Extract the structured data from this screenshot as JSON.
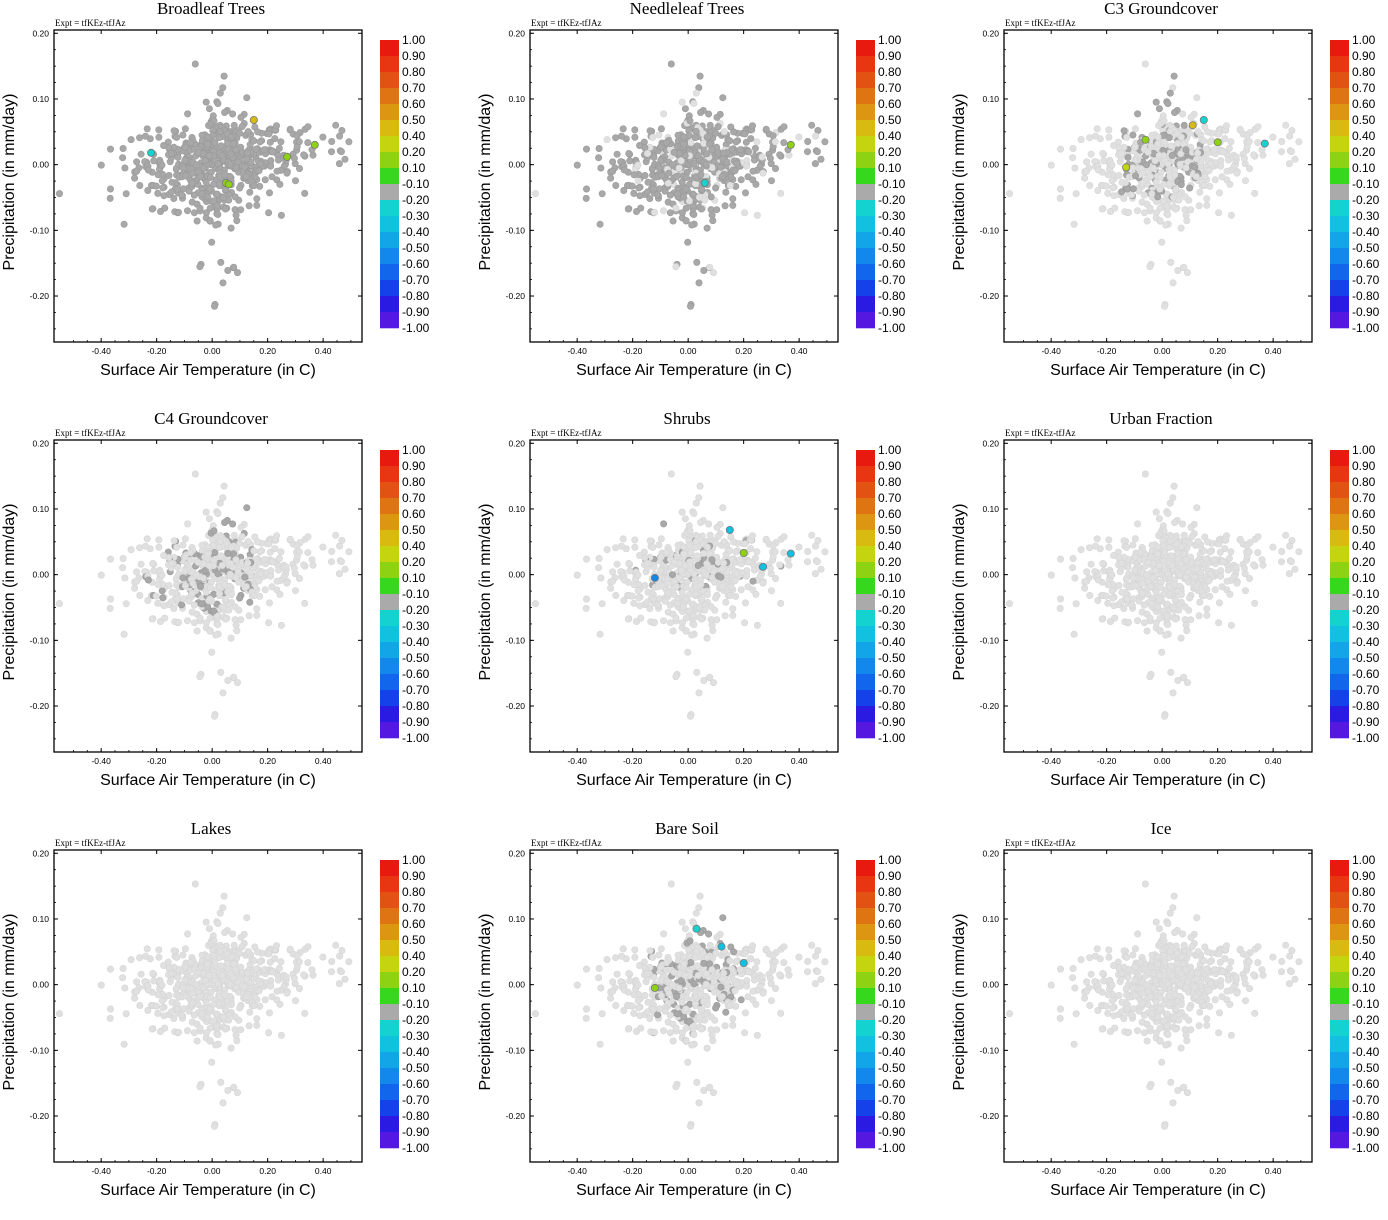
{
  "chart_data": {
    "type": "scatter",
    "xlabel": "Surface Air Temperature (in C)",
    "ylabel": "Precipitation (in mm/day)",
    "xlim": [
      -0.57,
      0.54
    ],
    "ylim": [
      -0.27,
      0.205
    ],
    "x_ticks": [
      "-0.40",
      "-0.20",
      "0.00",
      "0.20",
      "0.40"
    ],
    "y_ticks": [
      "0.20",
      "0.10",
      "0.00",
      "-0.10",
      "-0.20"
    ],
    "expt_label": "Expt = tfKEz-tfJAz",
    "colorbar": {
      "labels": [
        "1.00",
        "0.90",
        "0.80",
        "0.70",
        "0.60",
        "0.50",
        "0.40",
        "0.20",
        "0.10",
        "-0.10",
        "-0.20",
        "-0.30",
        "-0.40",
        "-0.50",
        "-0.60",
        "-0.70",
        "-0.80",
        "-0.90",
        "-1.00"
      ],
      "colors": [
        "#e8190f",
        "#e83512",
        "#e25212",
        "#de7512",
        "#dd9612",
        "#d8ba10",
        "#c4d40e",
        "#8ed214",
        "#36d81e",
        "#aaaaaa",
        "#14d2cf",
        "#12c0e0",
        "#12a6e8",
        "#1287ec",
        "#1266ec",
        "#1442e8",
        "#2a1ae2",
        "#5418e0",
        "#8012e4"
      ]
    },
    "point_colors": {
      "background": "#e0e0e0",
      "neutral": "#a8a8a8"
    },
    "panels": [
      {
        "title": "Broadleaf Trees",
        "highlights": [
          {
            "x": 0.15,
            "y": 0.068,
            "value": 0.45
          },
          {
            "x": -0.22,
            "y": 0.018,
            "value": -0.2
          },
          {
            "x": 0.27,
            "y": 0.012,
            "value": 0.2
          },
          {
            "x": 0.37,
            "y": 0.03,
            "value": 0.2
          },
          {
            "x": 0.05,
            "y": -0.028,
            "value": 0.15
          },
          {
            "x": 0.06,
            "y": -0.03,
            "value": 0.15
          }
        ]
      },
      {
        "title": "Needleleaf Trees",
        "highlights": [
          {
            "x": 0.37,
            "y": 0.03,
            "value": 0.2
          },
          {
            "x": 0.06,
            "y": -0.028,
            "value": -0.2
          }
        ]
      },
      {
        "title": "C3 Groundcover",
        "highlights": [
          {
            "x": 0.15,
            "y": 0.068,
            "value": -0.2
          },
          {
            "x": 0.11,
            "y": 0.06,
            "value": 0.45
          },
          {
            "x": -0.06,
            "y": 0.038,
            "value": 0.2
          },
          {
            "x": 0.2,
            "y": 0.034,
            "value": 0.2
          },
          {
            "x": 0.37,
            "y": 0.032,
            "value": -0.2
          },
          {
            "x": -0.13,
            "y": -0.004,
            "value": 0.35
          }
        ]
      },
      {
        "title": "C4 Groundcover",
        "highlights": []
      },
      {
        "title": "Shrubs",
        "highlights": [
          {
            "x": 0.15,
            "y": 0.068,
            "value": -0.3
          },
          {
            "x": 0.2,
            "y": 0.033,
            "value": 0.2
          },
          {
            "x": 0.37,
            "y": 0.032,
            "value": -0.3
          },
          {
            "x": 0.27,
            "y": 0.012,
            "value": -0.3
          },
          {
            "x": -0.12,
            "y": -0.005,
            "value": -0.5
          }
        ]
      },
      {
        "title": "Urban Fraction",
        "highlights": []
      },
      {
        "title": "Lakes",
        "highlights": []
      },
      {
        "title": "Bare Soil",
        "highlights": [
          {
            "x": 0.03,
            "y": 0.085,
            "value": -0.2
          },
          {
            "x": 0.12,
            "y": 0.058,
            "value": -0.3
          },
          {
            "x": 0.2,
            "y": 0.033,
            "value": -0.3
          },
          {
            "x": -0.12,
            "y": -0.005,
            "value": 0.2
          }
        ]
      },
      {
        "title": "Ice",
        "highlights": []
      }
    ]
  }
}
